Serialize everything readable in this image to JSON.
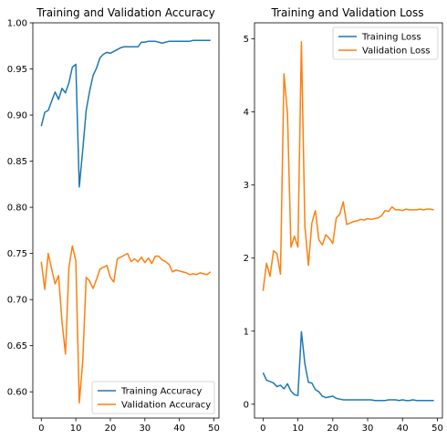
{
  "chart_data": [
    {
      "type": "line",
      "title": "Training and Validation Accuracy",
      "xlabel": "",
      "ylabel": "",
      "xlim": [
        -2.45,
        51.45
      ],
      "ylim": [
        0.5715,
        1.0
      ],
      "xticks": [
        "0",
        "10",
        "20",
        "30",
        "40",
        "50"
      ],
      "xtick_values": [
        0,
        10,
        20,
        30,
        40,
        50
      ],
      "yticks": [
        "0.60",
        "0.65",
        "0.70",
        "0.75",
        "0.80",
        "0.85",
        "0.90",
        "0.95",
        "1.00"
      ],
      "ytick_values": [
        0.6,
        0.65,
        0.7,
        0.75,
        0.8,
        0.85,
        0.9,
        0.95,
        1.0
      ],
      "legend_position": "lower-right",
      "grid": false,
      "x": [
        0,
        1,
        2,
        3,
        4,
        5,
        6,
        7,
        8,
        9,
        10,
        11,
        12,
        13,
        14,
        15,
        16,
        17,
        18,
        19,
        20,
        21,
        22,
        23,
        24,
        25,
        26,
        27,
        28,
        29,
        30,
        31,
        32,
        33,
        34,
        35,
        36,
        37,
        38,
        39,
        40,
        41,
        42,
        43,
        44,
        45,
        46,
        47,
        48,
        49
      ],
      "series": [
        {
          "name": "Training Accuracy",
          "color": "#1f77b4",
          "values": [
            0.888,
            0.903,
            0.905,
            0.915,
            0.925,
            0.917,
            0.929,
            0.924,
            0.935,
            0.952,
            0.955,
            0.822,
            0.862,
            0.905,
            0.926,
            0.943,
            0.951,
            0.962,
            0.966,
            0.968,
            0.967,
            0.969,
            0.971,
            0.973,
            0.974,
            0.974,
            0.974,
            0.974,
            0.974,
            0.979,
            0.979,
            0.98,
            0.98,
            0.98,
            0.979,
            0.978,
            0.979,
            0.98,
            0.98,
            0.98,
            0.98,
            0.98,
            0.98,
            0.98,
            0.981,
            0.981,
            0.981,
            0.981,
            0.981,
            0.981
          ]
        },
        {
          "name": "Validation Accuracy",
          "color": "#ff7f0e",
          "values": [
            0.741,
            0.711,
            0.75,
            0.733,
            0.717,
            0.726,
            0.676,
            0.641,
            0.735,
            0.758,
            0.742,
            0.588,
            0.633,
            0.724,
            0.72,
            0.712,
            0.722,
            0.733,
            0.735,
            0.737,
            0.724,
            0.719,
            0.744,
            0.746,
            0.748,
            0.75,
            0.741,
            0.744,
            0.741,
            0.746,
            0.74,
            0.745,
            0.739,
            0.747,
            0.747,
            0.743,
            0.741,
            0.738,
            0.73,
            0.732,
            0.731,
            0.73,
            0.729,
            0.727,
            0.728,
            0.727,
            0.729,
            0.728,
            0.727,
            0.73
          ]
        }
      ]
    },
    {
      "type": "line",
      "title": "Training and Validation Loss",
      "xlabel": "",
      "ylabel": "",
      "xlim": [
        -2.45,
        51.45
      ],
      "ylim": [
        -0.19,
        5.22
      ],
      "xticks": [
        "0",
        "10",
        "20",
        "30",
        "40",
        "50"
      ],
      "xtick_values": [
        0,
        10,
        20,
        30,
        40,
        50
      ],
      "yticks": [
        "0",
        "1",
        "2",
        "3",
        "4",
        "5"
      ],
      "ytick_values": [
        0,
        1,
        2,
        3,
        4,
        5
      ],
      "legend_position": "upper-right",
      "grid": false,
      "x": [
        0,
        1,
        2,
        3,
        4,
        5,
        6,
        7,
        8,
        9,
        10,
        11,
        12,
        13,
        14,
        15,
        16,
        17,
        18,
        19,
        20,
        21,
        22,
        23,
        24,
        25,
        26,
        27,
        28,
        29,
        30,
        31,
        32,
        33,
        34,
        35,
        36,
        37,
        38,
        39,
        40,
        41,
        42,
        43,
        44,
        45,
        46,
        47,
        48,
        49
      ],
      "series": [
        {
          "name": "Training Loss",
          "color": "#1f77b4",
          "values": [
            0.43,
            0.33,
            0.31,
            0.29,
            0.24,
            0.26,
            0.21,
            0.28,
            0.18,
            0.13,
            0.12,
            0.99,
            0.55,
            0.3,
            0.29,
            0.2,
            0.17,
            0.11,
            0.09,
            0.1,
            0.11,
            0.08,
            0.07,
            0.06,
            0.06,
            0.06,
            0.06,
            0.06,
            0.06,
            0.06,
            0.06,
            0.06,
            0.05,
            0.05,
            0.05,
            0.05,
            0.06,
            0.06,
            0.06,
            0.05,
            0.06,
            0.05,
            0.05,
            0.06,
            0.05,
            0.05,
            0.05,
            0.05,
            0.05,
            0.05
          ]
        },
        {
          "name": "Validation Loss",
          "color": "#ff7f0e",
          "values": [
            1.55,
            1.93,
            1.75,
            2.1,
            2.06,
            1.78,
            4.52,
            3.98,
            2.15,
            2.3,
            2.15,
            4.96,
            2.43,
            1.9,
            2.48,
            2.65,
            2.25,
            2.18,
            2.32,
            2.27,
            2.2,
            2.55,
            2.6,
            2.77,
            2.46,
            2.48,
            2.5,
            2.51,
            2.53,
            2.52,
            2.54,
            2.53,
            2.54,
            2.55,
            2.58,
            2.65,
            2.64,
            2.7,
            2.66,
            2.66,
            2.65,
            2.67,
            2.66,
            2.66,
            2.66,
            2.67,
            2.66,
            2.67,
            2.67,
            2.66
          ]
        }
      ]
    }
  ]
}
